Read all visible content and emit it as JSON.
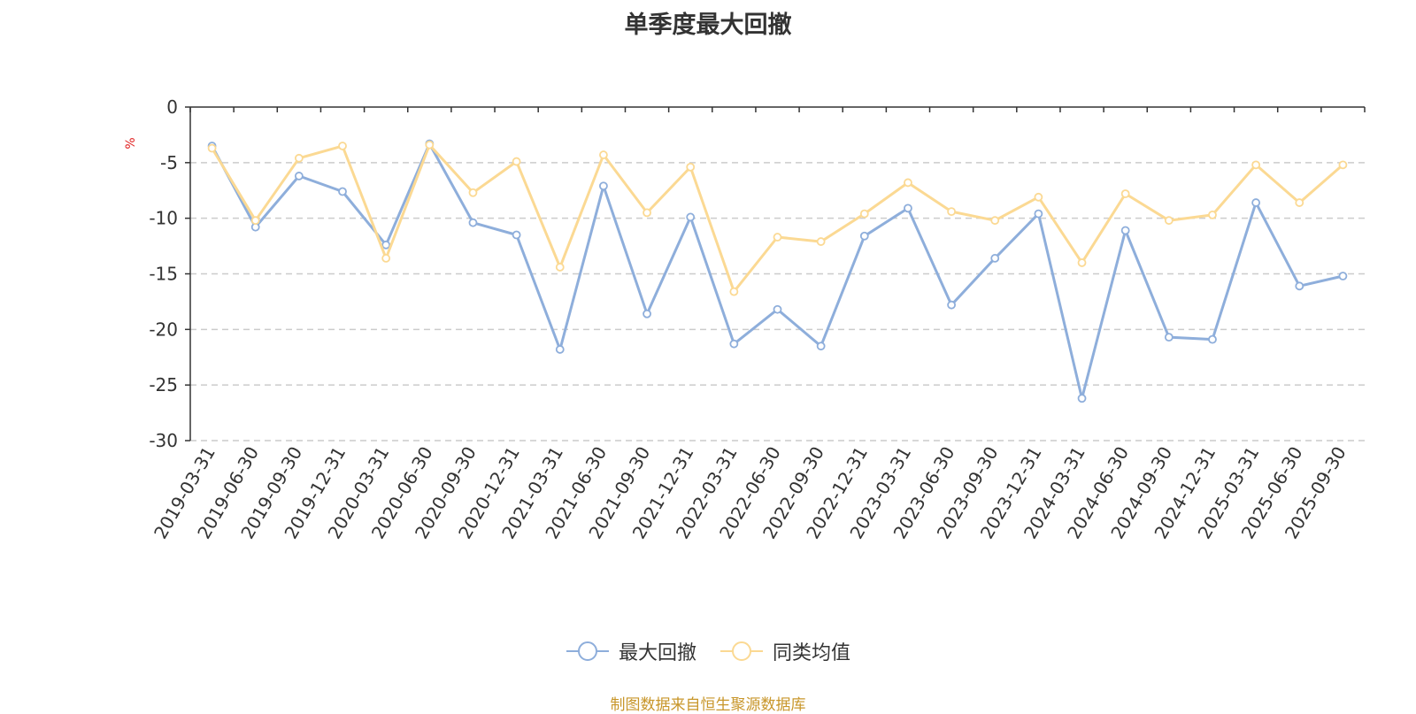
{
  "title": "单季度最大回撤",
  "source_note": "制图数据来自恒生聚源数据库",
  "colors": {
    "series1": "#8eaedb",
    "series2": "#fbd993",
    "grid": "#cccccc",
    "axis": "#333333",
    "unit": "#e02020",
    "source": "#c8962a"
  },
  "chart_data": {
    "type": "line",
    "title": "单季度最大回撤",
    "ylabel": "%",
    "ylim": [
      -30,
      0
    ],
    "yticks": [
      0,
      -5,
      -10,
      -15,
      -20,
      -25,
      -30
    ],
    "grid": true,
    "legend_position": "bottom",
    "categories": [
      "2019-03-31",
      "2019-06-30",
      "2019-09-30",
      "2019-12-31",
      "2020-03-31",
      "2020-06-30",
      "2020-09-30",
      "2020-12-31",
      "2021-03-31",
      "2021-06-30",
      "2021-09-30",
      "2021-12-31",
      "2022-03-31",
      "2022-06-30",
      "2022-09-30",
      "2022-12-31",
      "2023-03-31",
      "2023-06-30",
      "2023-09-30",
      "2023-12-31",
      "2024-03-31",
      "2024-06-30",
      "2024-09-30",
      "2024-12-31",
      "2025-03-31",
      "2025-06-30",
      "2025-09-30"
    ],
    "series": [
      {
        "name": "最大回撤",
        "values": [
          -3.5,
          -10.8,
          -6.2,
          -7.6,
          -12.4,
          -3.3,
          -10.4,
          -11.5,
          -21.8,
          -7.1,
          -18.6,
          -9.9,
          -21.3,
          -18.2,
          -21.5,
          -11.6,
          -9.1,
          -17.8,
          -13.6,
          -9.6,
          -26.2,
          -11.1,
          -20.7,
          -20.9,
          -8.6,
          -16.1,
          -15.2
        ]
      },
      {
        "name": "同类均值",
        "values": [
          -3.7,
          -10.2,
          -4.6,
          -3.5,
          -13.6,
          -3.4,
          -7.7,
          -4.9,
          -14.4,
          -4.3,
          -9.5,
          -5.4,
          -16.6,
          -11.7,
          -12.1,
          -9.6,
          -6.8,
          -9.4,
          -10.2,
          -8.1,
          -14.0,
          -7.8,
          -10.2,
          -9.7,
          -5.2,
          -8.6,
          -5.2
        ]
      }
    ]
  }
}
